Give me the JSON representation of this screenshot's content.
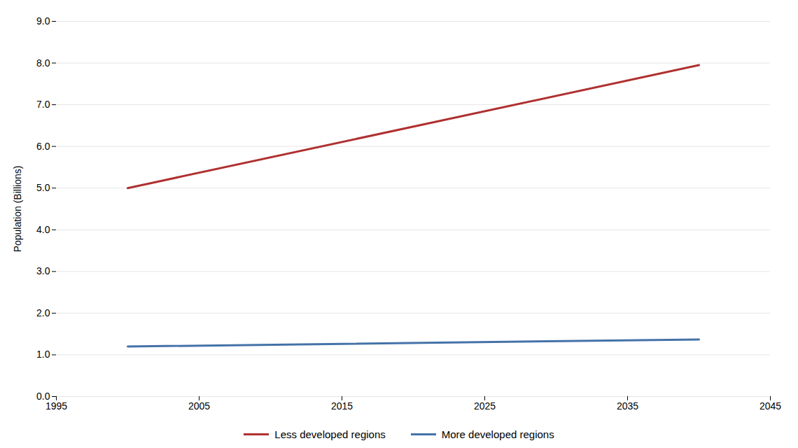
{
  "chart_data": {
    "type": "line",
    "ylabel": "Population (Billions)",
    "x": [
      2000,
      2040
    ],
    "series": [
      {
        "name": "Less developed regions",
        "color": "#b03030",
        "values": [
          5.0,
          7.95
        ]
      },
      {
        "name": "More developed regions",
        "color": "#4472a8",
        "values": [
          1.2,
          1.37
        ]
      }
    ],
    "xlim": [
      1995,
      2045
    ],
    "xticks": [
      1995,
      2005,
      2015,
      2025,
      2035,
      2045
    ],
    "ylim": [
      0.0,
      9.0
    ],
    "yticks": [
      {
        "value": 0,
        "label": "0.0"
      },
      {
        "value": 1,
        "label": "1.0"
      },
      {
        "value": 2,
        "label": "2.0"
      },
      {
        "value": 3,
        "label": "3.0"
      },
      {
        "value": 4,
        "label": "4.0"
      },
      {
        "value": 5,
        "label": "5.0"
      },
      {
        "value": 6,
        "label": "6.0"
      },
      {
        "value": 7,
        "label": "7.0"
      },
      {
        "value": 8,
        "label": "8.0"
      },
      {
        "value": 9,
        "label": "9.0"
      }
    ],
    "grid": true,
    "legend": "bottom"
  }
}
